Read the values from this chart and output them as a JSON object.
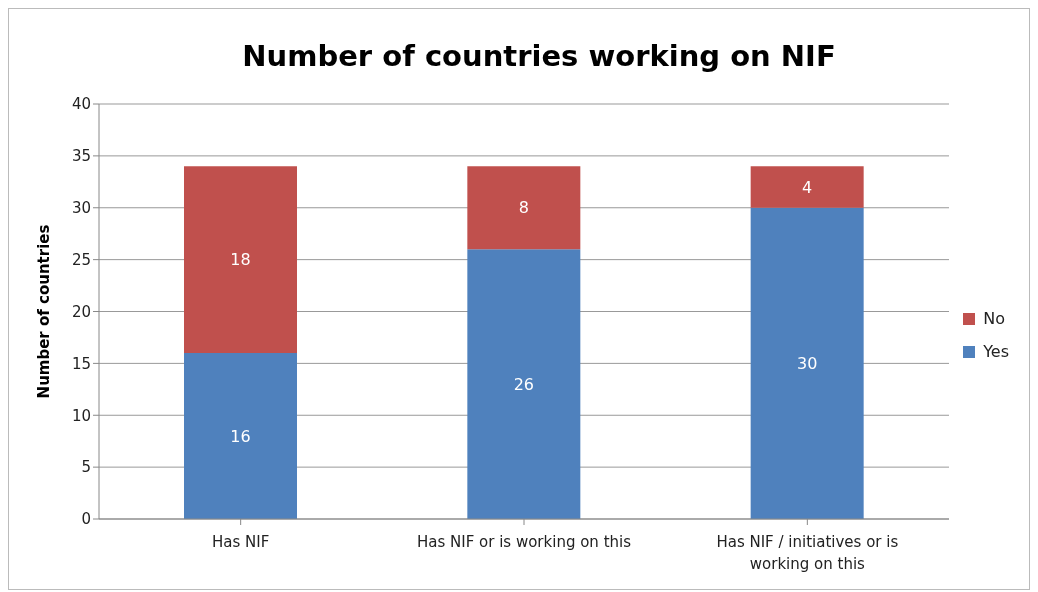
{
  "chart_data": {
    "type": "bar",
    "title": "Number of countries working on NIF",
    "ylabel": "Number of countries",
    "categories": [
      "Has NIF",
      "Has NIF or is working on this",
      "Has NIF / initiatives or is working on this"
    ],
    "series": [
      {
        "name": "Yes",
        "color": "#4f81bd",
        "values": [
          16,
          26,
          30
        ]
      },
      {
        "name": "No",
        "color": "#c0504d",
        "values": [
          18,
          8,
          4
        ]
      }
    ],
    "stacked": true,
    "ylim": [
      0,
      40
    ],
    "yticks": [
      0,
      5,
      10,
      15,
      20,
      25,
      30,
      35,
      40
    ],
    "grid": "y",
    "legend": "right",
    "data_labels": true
  }
}
